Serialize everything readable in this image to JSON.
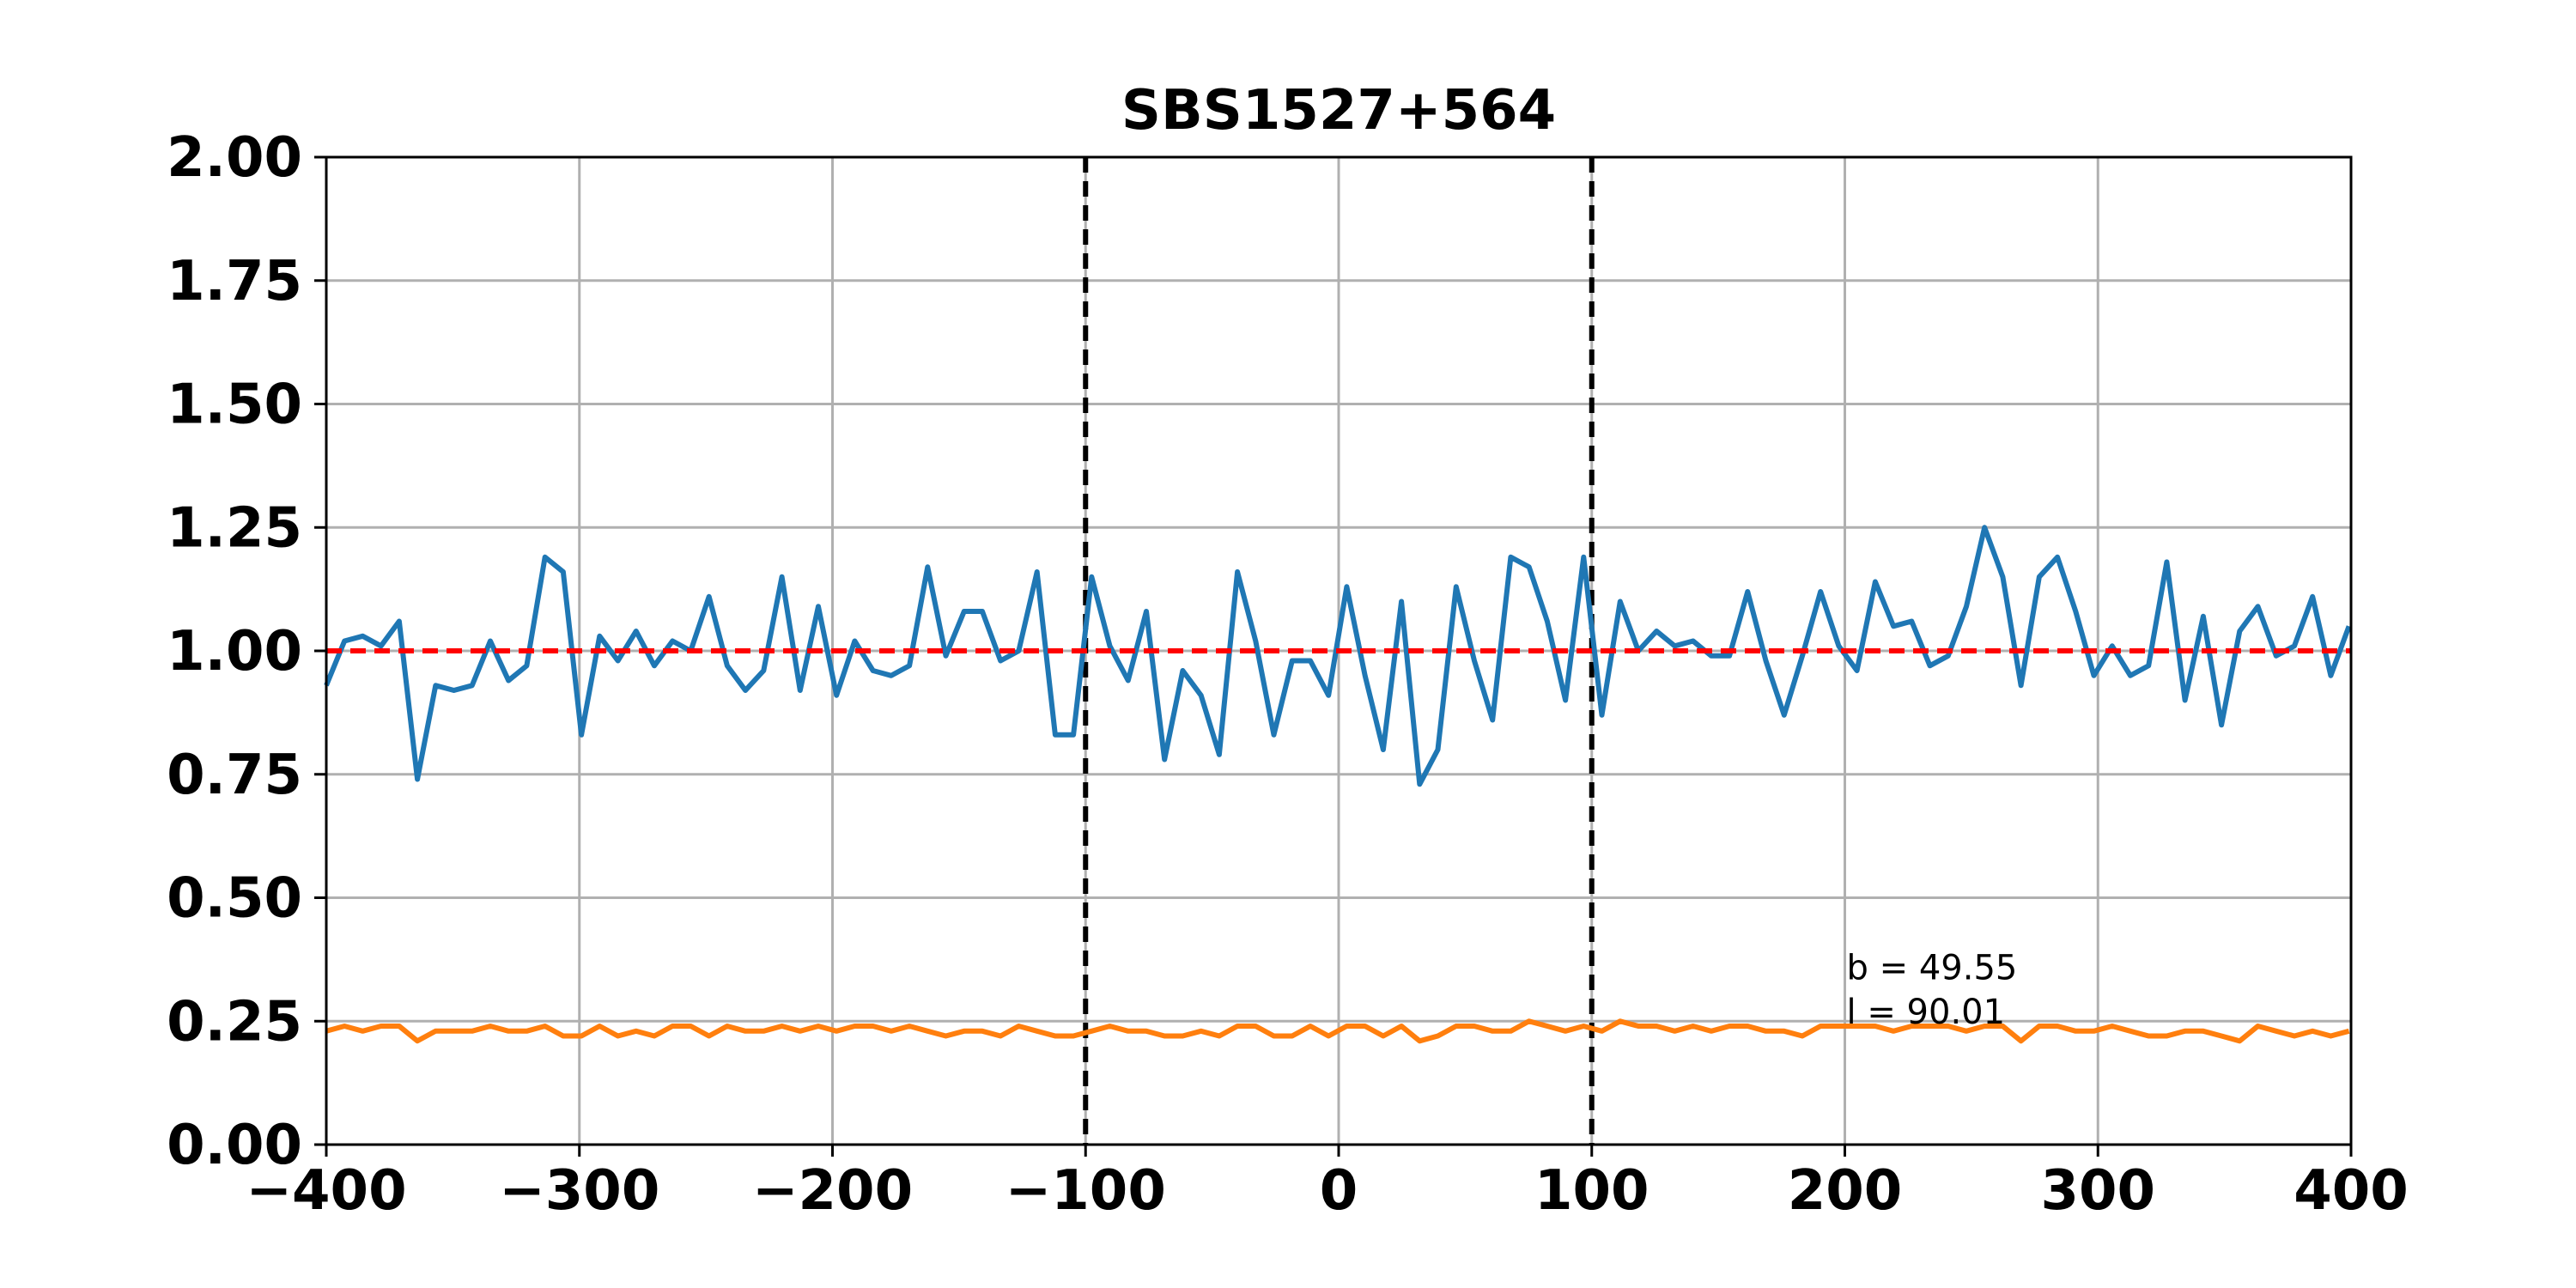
{
  "chart_data": {
    "type": "line",
    "title": "SBS1527+564",
    "xlabel": "",
    "ylabel": "",
    "xlim": [
      -400,
      400
    ],
    "ylim": [
      0,
      2
    ],
    "x_ticks": [
      "−400",
      "−300",
      "−200",
      "−100",
      "0",
      "100",
      "200",
      "300",
      "400"
    ],
    "y_ticks": [
      "0.00",
      "0.25",
      "0.50",
      "0.75",
      "1.00",
      "1.25",
      "1.50",
      "1.75",
      "2.00"
    ],
    "grid": true,
    "x_step": 7.2,
    "series": [
      {
        "color": "#1f77b4",
        "x_start": -400,
        "values": [
          0.93,
          1.02,
          1.03,
          1.01,
          1.06,
          0.74,
          0.93,
          0.92,
          0.93,
          1.02,
          0.94,
          0.97,
          1.19,
          1.16,
          0.83,
          1.03,
          0.98,
          1.04,
          0.97,
          1.02,
          1.0,
          1.11,
          0.97,
          0.92,
          0.96,
          1.15,
          0.92,
          1.09,
          0.91,
          1.02,
          0.96,
          0.95,
          0.97,
          1.17,
          0.99,
          1.08,
          1.08,
          0.98,
          1.0,
          1.16,
          0.83,
          0.83,
          1.15,
          1.01,
          0.94,
          1.08,
          0.78,
          0.96,
          0.91,
          0.79,
          1.16,
          1.02,
          0.83,
          0.98,
          0.98,
          0.91,
          1.13,
          0.95,
          0.8,
          1.1,
          0.73,
          0.8,
          1.13,
          0.98,
          0.86,
          1.19,
          1.17,
          1.06,
          0.9,
          1.19,
          0.87,
          1.1,
          1.0,
          1.04,
          1.01,
          1.02,
          0.99,
          0.99,
          1.12,
          0.98,
          0.87,
          0.99,
          1.12,
          1.01,
          0.96,
          1.14,
          1.05,
          1.06,
          0.97,
          0.99,
          1.09,
          1.25,
          1.15,
          0.93,
          1.15,
          1.19,
          1.08,
          0.95,
          1.01,
          0.95,
          0.97,
          1.18,
          0.9,
          1.07,
          0.85,
          1.04,
          1.09,
          0.99,
          1.01,
          1.11,
          0.95,
          1.05
        ]
      },
      {
        "color": "#ff7f0e",
        "x_start": -400,
        "values": [
          0.23,
          0.24,
          0.23,
          0.24,
          0.24,
          0.21,
          0.23,
          0.23,
          0.23,
          0.24,
          0.23,
          0.23,
          0.24,
          0.22,
          0.22,
          0.24,
          0.22,
          0.23,
          0.22,
          0.24,
          0.24,
          0.22,
          0.24,
          0.23,
          0.23,
          0.24,
          0.23,
          0.24,
          0.23,
          0.24,
          0.24,
          0.23,
          0.24,
          0.23,
          0.22,
          0.23,
          0.23,
          0.22,
          0.24,
          0.23,
          0.22,
          0.22,
          0.23,
          0.24,
          0.23,
          0.23,
          0.22,
          0.22,
          0.23,
          0.22,
          0.24,
          0.24,
          0.22,
          0.22,
          0.24,
          0.22,
          0.24,
          0.24,
          0.22,
          0.24,
          0.21,
          0.22,
          0.24,
          0.24,
          0.23,
          0.23,
          0.25,
          0.24,
          0.23,
          0.24,
          0.23,
          0.25,
          0.24,
          0.24,
          0.23,
          0.24,
          0.23,
          0.24,
          0.24,
          0.23,
          0.23,
          0.22,
          0.24,
          0.24,
          0.24,
          0.24,
          0.23,
          0.24,
          0.24,
          0.24,
          0.23,
          0.24,
          0.24,
          0.21,
          0.24,
          0.24,
          0.23,
          0.23,
          0.24,
          0.23,
          0.22,
          0.22,
          0.23,
          0.23,
          0.22,
          0.21,
          0.24,
          0.23,
          0.22,
          0.23,
          0.22,
          0.23
        ]
      }
    ],
    "reference_lines": [
      {
        "orientation": "horizontal",
        "value": 1.0,
        "color": "#ff0000",
        "style": "dashed"
      },
      {
        "orientation": "vertical",
        "value": -100,
        "color": "#000000",
        "style": "dashed"
      },
      {
        "orientation": "vertical",
        "value": 100,
        "color": "#000000",
        "style": "dashed"
      }
    ],
    "annotations": [
      {
        "text": "b = 49.55",
        "x": 200,
        "y": 0.335
      },
      {
        "text": "l = 90.01",
        "x": 200,
        "y": 0.245
      }
    ]
  }
}
